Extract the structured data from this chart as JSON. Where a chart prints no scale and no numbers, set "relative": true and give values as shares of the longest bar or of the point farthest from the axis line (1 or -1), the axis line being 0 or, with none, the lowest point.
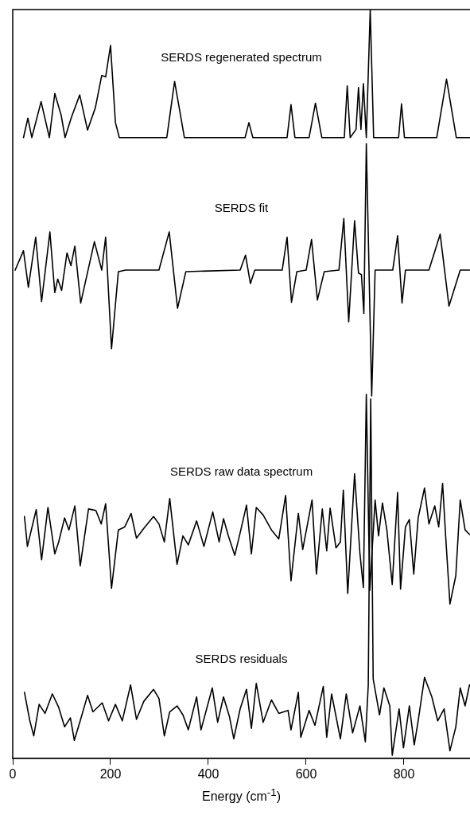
{
  "chart_data": {
    "type": "line",
    "relative": true,
    "xlabel": "Energy (cm$^{-1}$)",
    "xlim": [
      0,
      935
    ],
    "xticks": [
      0,
      200,
      400,
      600,
      800
    ],
    "grid": false,
    "legend": false,
    "marker": "none",
    "line_style": "solid",
    "series": [
      {
        "name": "SERDS regenerated spectrum",
        "color": "#000000",
        "x": [
          22,
          31,
          39,
          58,
          75,
          86,
          99,
          107,
          120,
          137,
          153,
          169,
          182,
          190,
          200,
          210,
          218,
          315,
          331,
          351,
          475,
          483,
          491,
          561,
          569,
          577,
          606,
          619,
          632,
          678,
          684,
          690,
          702,
          707,
          712,
          717,
          723,
          731,
          738,
          789,
          795,
          801,
          867,
          887,
          907,
          934
        ],
        "values": [
          0.829,
          0.855,
          0.829,
          0.877,
          0.829,
          0.888,
          0.859,
          0.829,
          0.856,
          0.886,
          0.839,
          0.869,
          0.912,
          0.91,
          0.952,
          0.849,
          0.829,
          0.829,
          0.904,
          0.829,
          0.829,
          0.849,
          0.829,
          0.829,
          0.873,
          0.829,
          0.829,
          0.875,
          0.829,
          0.829,
          0.898,
          0.829,
          0.84,
          0.896,
          0.84,
          0.901,
          0.829,
          1.0,
          0.829,
          0.829,
          0.874,
          0.829,
          0.829,
          0.907,
          0.829,
          0.829
        ]
      },
      {
        "name": "SERDS fit",
        "color": "#000000",
        "x": [
          5,
          22,
          32,
          47,
          59,
          76,
          86,
          92,
          100,
          111,
          119,
          127,
          139,
          167,
          182,
          190,
          202,
          216,
          231,
          299,
          320,
          337,
          354,
          465,
          476,
          486,
          495,
          551,
          561,
          570,
          581,
          600,
          611,
          623,
          637,
          667,
          677,
          687,
          699,
          707,
          713,
          718,
          723,
          734,
          741,
          777,
          787,
          796,
          803,
          851,
          874,
          892,
          915,
          934
        ],
        "values": [
          0.652,
          0.678,
          0.629,
          0.696,
          0.61,
          0.703,
          0.622,
          0.64,
          0.625,
          0.675,
          0.658,
          0.684,
          0.608,
          0.69,
          0.652,
          0.696,
          0.547,
          0.65,
          0.652,
          0.652,
          0.703,
          0.601,
          0.65,
          0.652,
          0.672,
          0.634,
          0.652,
          0.652,
          0.696,
          0.609,
          0.65,
          0.652,
          0.693,
          0.612,
          0.65,
          0.652,
          0.721,
          0.583,
          0.718,
          0.648,
          0.646,
          0.594,
          0.821,
          0.484,
          0.652,
          0.652,
          0.698,
          0.608,
          0.652,
          0.652,
          0.7,
          0.604,
          0.652,
          0.652
        ]
      },
      {
        "name": "SERDS raw data spectrum",
        "color": "#000000",
        "x": [
          24,
          30,
          48,
          59,
          72,
          86,
          94,
          106,
          115,
          127,
          138,
          155,
          170,
          181,
          190,
          202,
          216,
          229,
          242,
          253,
          268,
          288,
          299,
          310,
          321,
          336,
          348,
          359,
          376,
          391,
          409,
          422,
          431,
          441,
          454,
          465,
          478,
          488,
          498,
          512,
          529,
          544,
          558,
          569,
          584,
          593,
          612,
          621,
          633,
          642,
          649,
          661,
          670,
          676,
          685,
          699,
          710,
          717,
          723,
          730,
          741,
          748,
          756,
          765,
          776,
          787,
          793,
          803,
          811,
          820,
          829,
          842,
          851,
          863,
          871,
          879,
          885,
          894,
          906,
          915,
          925,
          934
        ],
        "values": [
          0.323,
          0.283,
          0.332,
          0.265,
          0.335,
          0.273,
          0.289,
          0.321,
          0.305,
          0.337,
          0.257,
          0.333,
          0.331,
          0.313,
          0.34,
          0.227,
          0.305,
          0.309,
          0.327,
          0.294,
          0.307,
          0.323,
          0.313,
          0.289,
          0.347,
          0.259,
          0.297,
          0.285,
          0.317,
          0.283,
          0.329,
          0.289,
          0.32,
          0.297,
          0.271,
          0.301,
          0.338,
          0.273,
          0.335,
          0.325,
          0.305,
          0.293,
          0.351,
          0.237,
          0.327,
          0.279,
          0.345,
          0.246,
          0.333,
          0.277,
          0.334,
          0.281,
          0.289,
          0.358,
          0.22,
          0.38,
          0.273,
          0.228,
          0.486,
          0.224,
          0.345,
          0.297,
          0.341,
          0.305,
          0.232,
          0.355,
          0.226,
          0.309,
          0.319,
          0.246,
          0.321,
          0.361,
          0.313,
          0.337,
          0.309,
          0.367,
          0.299,
          0.206,
          0.244,
          0.345,
          0.305,
          0.299
        ]
      },
      {
        "name": "SERDS residuals",
        "color": "#000000",
        "x": [
          24,
          35,
          43,
          54,
          66,
          81,
          94,
          106,
          118,
          126,
          138,
          153,
          164,
          183,
          196,
          210,
          224,
          241,
          253,
          268,
          288,
          299,
          310,
          321,
          336,
          348,
          359,
          376,
          385,
          408,
          419,
          431,
          443,
          452,
          465,
          478,
          488,
          498,
          512,
          529,
          544,
          563,
          569,
          584,
          589,
          606,
          618,
          635,
          642,
          652,
          670,
          682,
          695,
          710,
          721,
          727,
          732,
          737,
          750,
          759,
          771,
          776,
          790,
          799,
          811,
          821,
          829,
          842,
          857,
          869,
          882,
          894,
          906,
          915,
          925,
          934
        ],
        "values": [
          0.088,
          0.05,
          0.03,
          0.072,
          0.06,
          0.086,
          0.068,
          0.042,
          0.054,
          0.024,
          0.05,
          0.084,
          0.062,
          0.074,
          0.05,
          0.072,
          0.05,
          0.098,
          0.052,
          0.076,
          0.092,
          0.08,
          0.03,
          0.062,
          0.07,
          0.058,
          0.038,
          0.082,
          0.038,
          0.094,
          0.048,
          0.082,
          0.056,
          0.026,
          0.066,
          0.092,
          0.04,
          0.1,
          0.048,
          0.078,
          0.06,
          0.064,
          0.038,
          0.088,
          0.028,
          0.064,
          0.044,
          0.096,
          0.028,
          0.086,
          0.026,
          0.086,
          0.034,
          0.07,
          0.022,
          0.098,
          0.48,
          0.106,
          0.058,
          0.094,
          0.07,
          0.004,
          0.066,
          0.014,
          0.07,
          0.018,
          0.05,
          0.108,
          0.082,
          0.05,
          0.066,
          0.01,
          0.042,
          0.094,
          0.07,
          0.098
        ]
      }
    ]
  }
}
